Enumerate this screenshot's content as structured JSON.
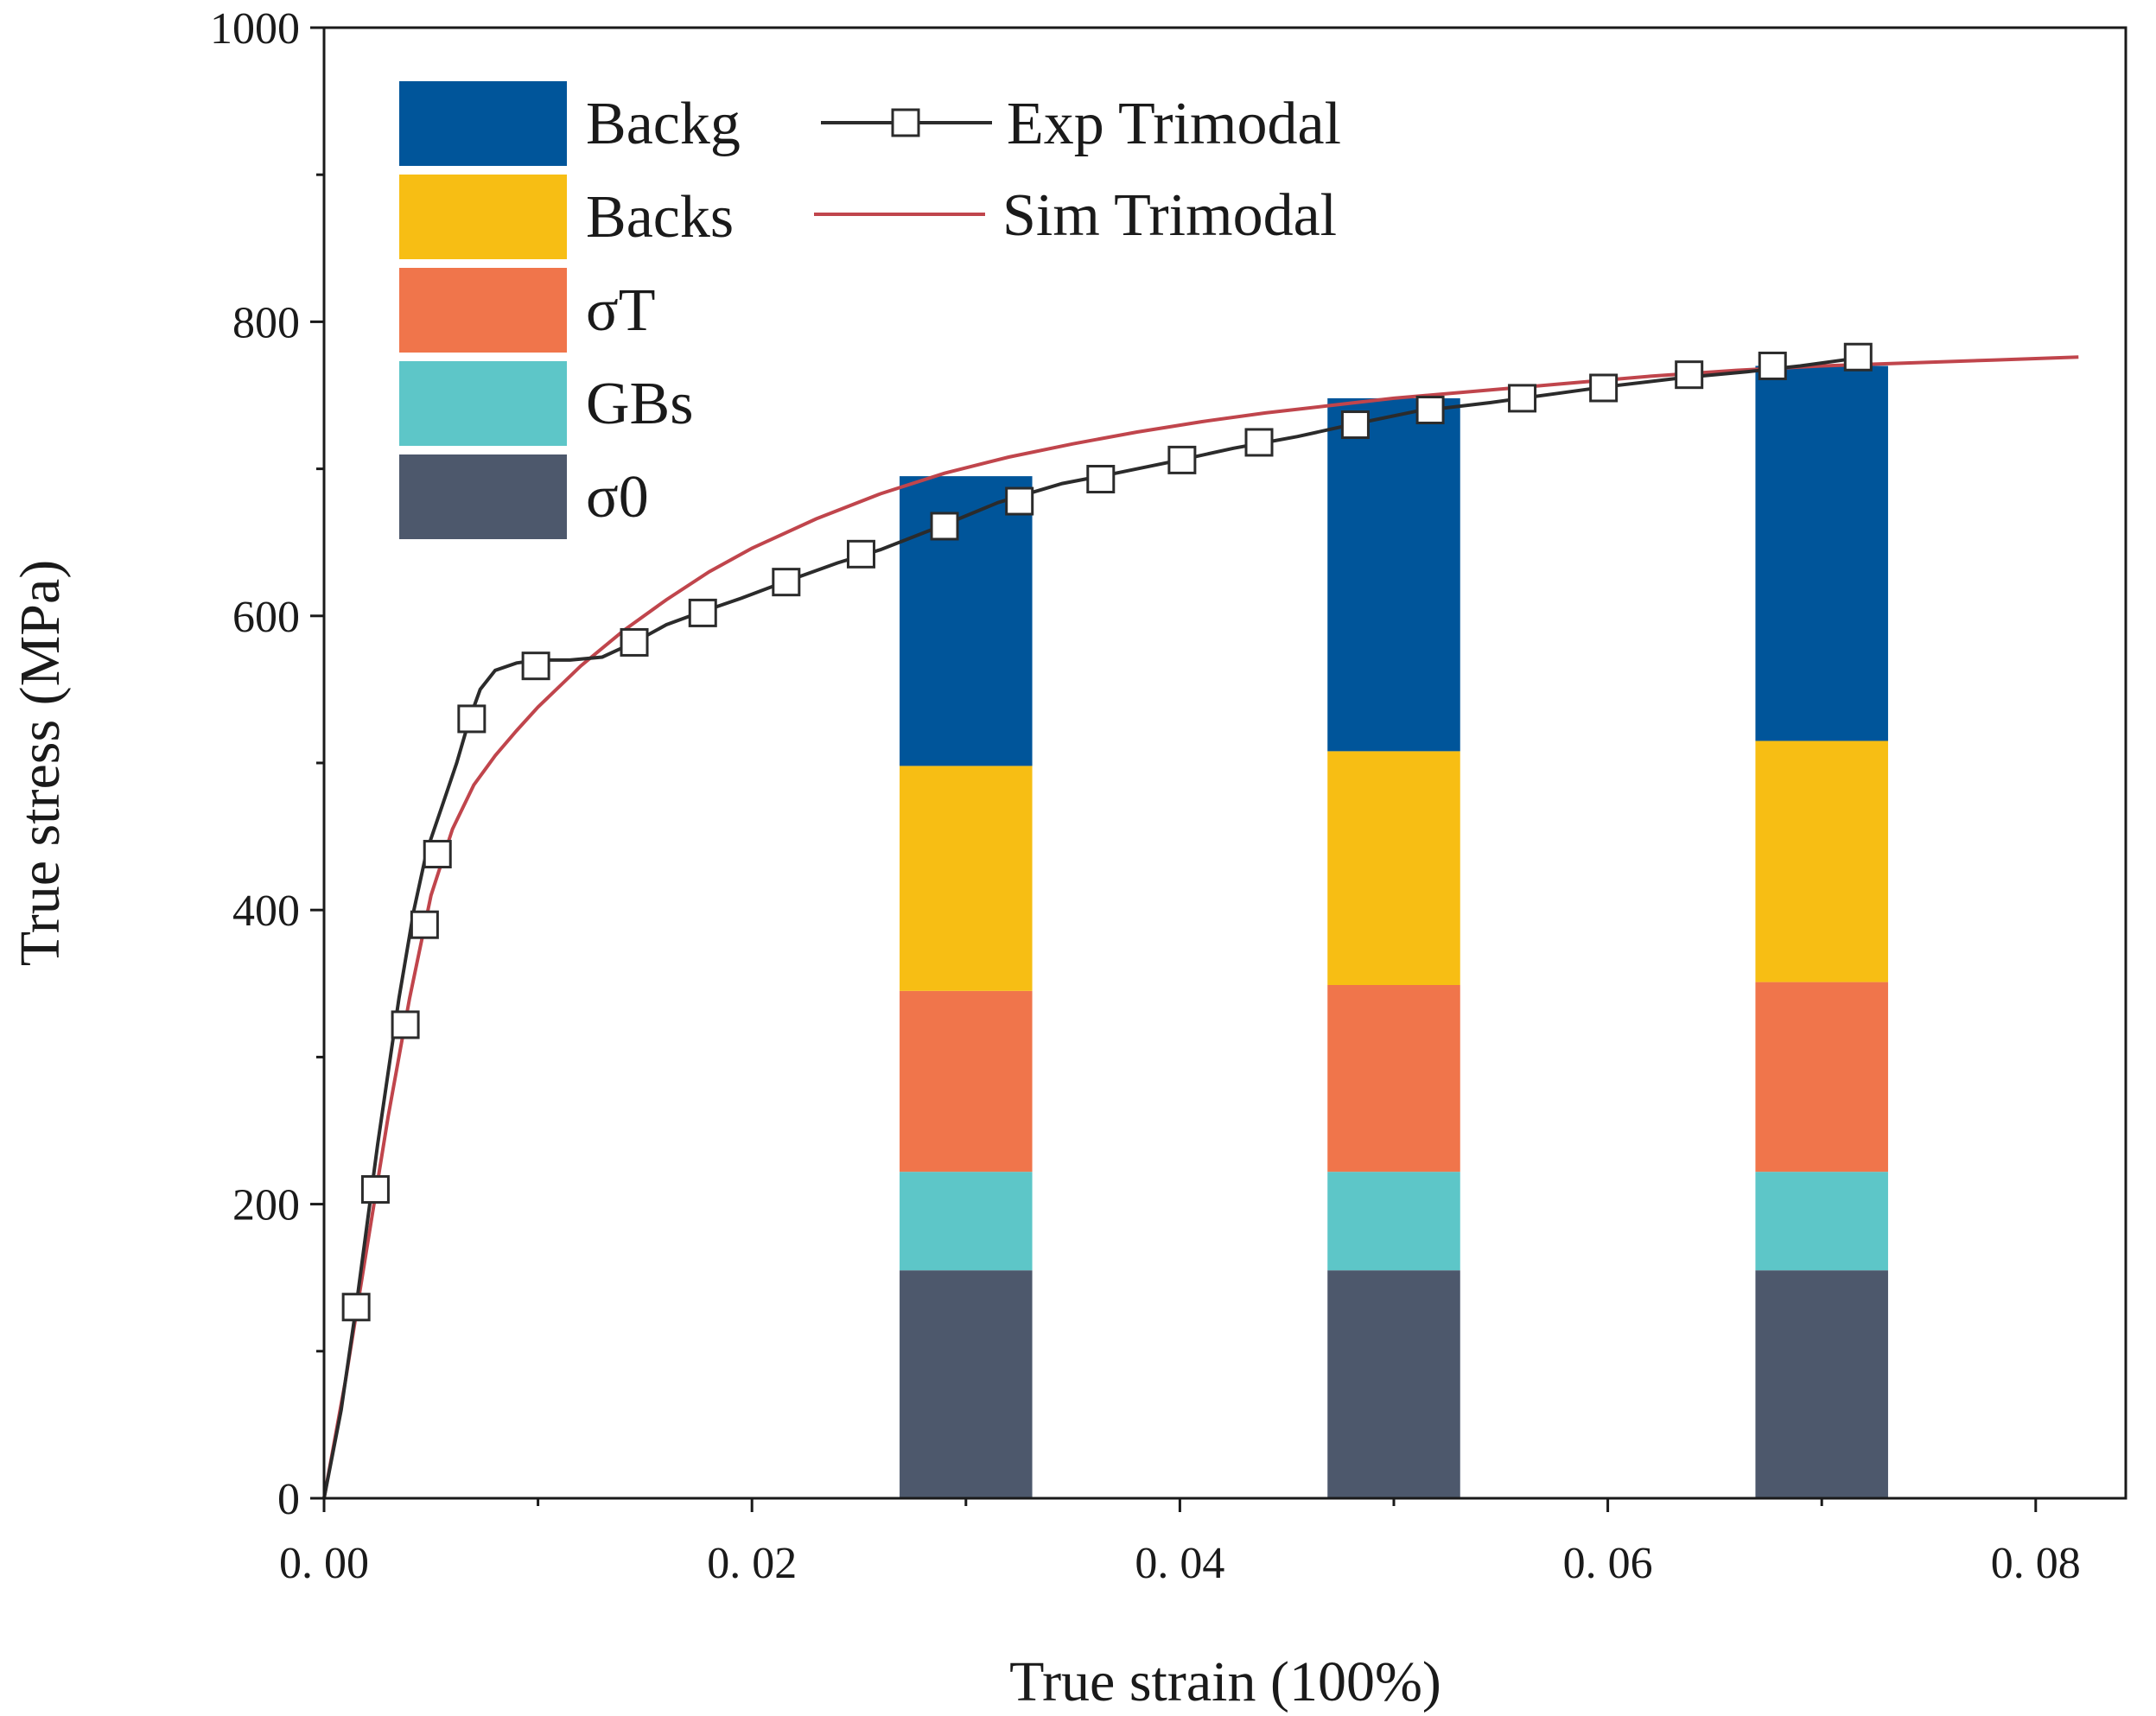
{
  "chart_data": {
    "type": "bar+line",
    "title": "",
    "xlabel": "True strain (100%)",
    "ylabel": "True stress (MPa)",
    "xlim": [
      0,
      0.083
    ],
    "ylim": [
      0,
      1000
    ],
    "x_ticks": [
      0.0,
      0.02,
      0.04,
      0.06,
      0.08
    ],
    "x_tick_labels": [
      "0. 00",
      "0. 02",
      "0. 04",
      "0. 06",
      "0. 08"
    ],
    "y_ticks": [
      0,
      200,
      400,
      600,
      800,
      1000
    ],
    "y_tick_labels": [
      "0",
      "200",
      "400",
      "600",
      "800",
      "1000"
    ],
    "grid": false,
    "legend_position": "top-left",
    "stacked_bars": {
      "bar_width": 0.0062,
      "x": [
        0.03,
        0.05,
        0.07
      ],
      "components": [
        {
          "name": "σ0",
          "color": "#4d586c",
          "values": [
            155,
            155,
            155
          ]
        },
        {
          "name": "GBs",
          "color": "#5dc6c8",
          "values": [
            67,
            67,
            67
          ]
        },
        {
          "name": "σT",
          "color": "#f0754b",
          "values": [
            123,
            127,
            129
          ]
        },
        {
          "name": "Backs",
          "color": "#f7be14",
          "values": [
            153,
            159,
            164
          ]
        },
        {
          "name": "Backg",
          "color": "#00559a",
          "values": [
            197,
            240,
            255
          ]
        }
      ]
    },
    "series": [
      {
        "name": "Exp Trimodal",
        "color": "#2b2b2b",
        "marker": "open-square",
        "x": [
          0.0,
          0.0008,
          0.0015,
          0.0025,
          0.0035,
          0.0042,
          0.0048,
          0.0055,
          0.0062,
          0.0068,
          0.0073,
          0.008,
          0.009,
          0.01,
          0.0115,
          0.013,
          0.0145,
          0.016,
          0.0175,
          0.0195,
          0.0215,
          0.024,
          0.026,
          0.029,
          0.0315,
          0.0345,
          0.037,
          0.04,
          0.0425,
          0.0455,
          0.048,
          0.051,
          0.0545,
          0.0575,
          0.06,
          0.0635,
          0.0665,
          0.069,
          0.071,
          0.072
        ],
        "y": [
          0,
          60,
          130,
          240,
          340,
          400,
          440,
          470,
          500,
          530,
          550,
          563,
          568,
          570,
          570,
          572,
          582,
          594,
          602,
          612,
          623,
          636,
          645,
          662,
          677,
          690,
          697,
          706,
          714,
          722,
          730,
          739,
          745,
          751,
          756,
          762,
          766,
          770,
          774,
          776
        ],
        "marker_x": [
          0.0015,
          0.0024,
          0.0038,
          0.0047,
          0.0053,
          0.0069,
          0.0099,
          0.0145,
          0.0177,
          0.0216,
          0.0251,
          0.029,
          0.0325,
          0.0363,
          0.0401,
          0.0437,
          0.0482,
          0.0517,
          0.056,
          0.0598,
          0.0638,
          0.0677,
          0.0717
        ],
        "marker_y": [
          130,
          210,
          322,
          390,
          438,
          530,
          566,
          582,
          602,
          623,
          642,
          661,
          678,
          693,
          706,
          718,
          730,
          740,
          748,
          755,
          764,
          770,
          776
        ]
      },
      {
        "name": "Sim Trimodal",
        "color": "#c0454c",
        "marker": "none",
        "x": [
          0.0,
          0.001,
          0.002,
          0.003,
          0.004,
          0.005,
          0.006,
          0.007,
          0.008,
          0.009,
          0.01,
          0.012,
          0.014,
          0.016,
          0.018,
          0.02,
          0.023,
          0.026,
          0.029,
          0.032,
          0.035,
          0.038,
          0.041,
          0.044,
          0.047,
          0.05,
          0.054,
          0.058,
          0.062,
          0.066,
          0.07,
          0.074,
          0.078,
          0.082
        ],
        "y": [
          0,
          80,
          170,
          260,
          340,
          410,
          455,
          485,
          505,
          522,
          538,
          566,
          590,
          611,
          630,
          646,
          666,
          683,
          697,
          708,
          717,
          725,
          732,
          738,
          743,
          748,
          753,
          758,
          763,
          767,
          770,
          772,
          774,
          776
        ]
      }
    ]
  }
}
